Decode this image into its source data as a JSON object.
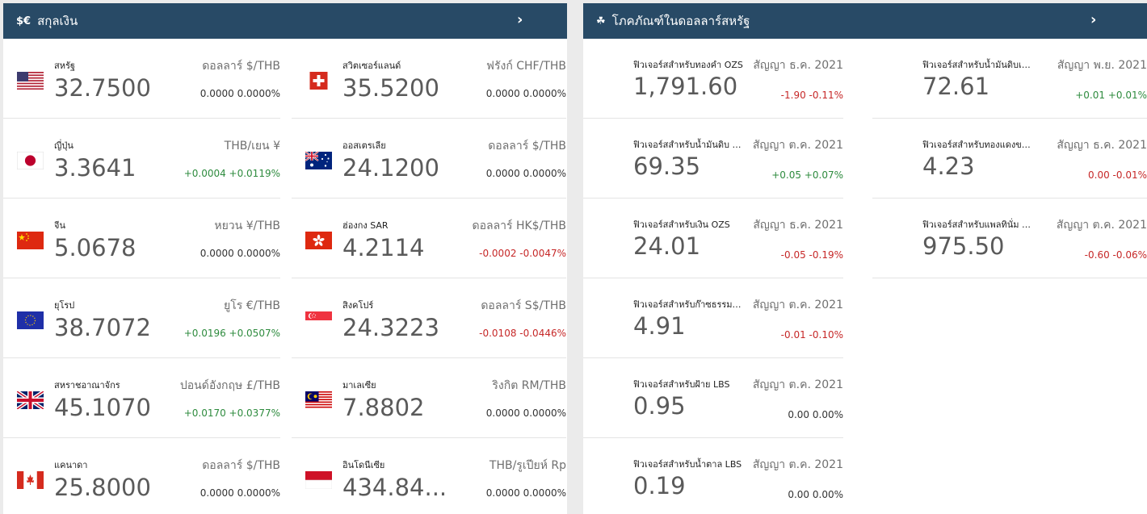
{
  "currency_panel": {
    "icon": "$€",
    "title": "สกุลเงิน",
    "arrow": "›",
    "columns": [
      [
        {
          "flag": "us-flag-icon",
          "name": "สหรัฐ",
          "pair": "ดอลลาร์ $/THB",
          "price": "32.7500",
          "change": "0.0000 0.0000%",
          "trend": "flat"
        },
        {
          "flag": "jp-flag-icon",
          "name": "ญี่ปุ่น",
          "pair": "THB/เยน ¥",
          "price": "3.3641",
          "change": "+0.0004 +0.0119%",
          "trend": "up"
        },
        {
          "flag": "cn-flag-icon",
          "name": "จีน",
          "pair": "หยวน ¥/THB",
          "price": "5.0678",
          "change": "0.0000 0.0000%",
          "trend": "flat"
        },
        {
          "flag": "eu-flag-icon",
          "name": "ยุโรป",
          "pair": "ยูโร €/THB",
          "price": "38.7072",
          "change": "+0.0196 +0.0507%",
          "trend": "up"
        },
        {
          "flag": "uk-flag-icon",
          "name": "สหราชอาณาจักร",
          "pair": "ปอนด์อังกฤษ £/THB",
          "price": "45.1070",
          "change": "+0.0170 +0.0377%",
          "trend": "up"
        },
        {
          "flag": "ca-flag-icon",
          "name": "แคนาดา",
          "pair": "ดอลลาร์ $/THB",
          "price": "25.8000",
          "change": "0.0000 0.0000%",
          "trend": "flat"
        }
      ],
      [
        {
          "flag": "ch-flag-icon",
          "name": "สวิตเซอร์แลนด์",
          "pair": "ฟรังก์ CHF/THB",
          "price": "35.5200",
          "change": "0.0000 0.0000%",
          "trend": "flat"
        },
        {
          "flag": "au-flag-icon",
          "name": "ออสเตรเลีย",
          "pair": "ดอลลาร์ $/THB",
          "price": "24.1200",
          "change": "0.0000 0.0000%",
          "trend": "flat"
        },
        {
          "flag": "hk-flag-icon",
          "name": "ฮ่องกง SAR",
          "pair": "ดอลลาร์ HK$/THB",
          "price": "4.2114",
          "change": "-0.0002 -0.0047%",
          "trend": "down"
        },
        {
          "flag": "sg-flag-icon",
          "name": "สิงคโปร์",
          "pair": "ดอลลาร์ S$/THB",
          "price": "24.3223",
          "change": "-0.0108 -0.0446%",
          "trend": "down"
        },
        {
          "flag": "my-flag-icon",
          "name": "มาเลเซีย",
          "pair": "ริงกิต RM/THB",
          "price": "7.8802",
          "change": "0.0000 0.0000%",
          "trend": "flat"
        },
        {
          "flag": "id-flag-icon",
          "name": "อินโดนีเซีย",
          "pair": "THB/รูเปียห์ Rp",
          "price": "434.84...",
          "change": "0.0000 0.0000%",
          "trend": "flat"
        }
      ]
    ]
  },
  "commodity_panel": {
    "icon": "☘",
    "title": "โภคภัณฑ์ในดอลลาร์สหรัฐ",
    "arrow": "›",
    "columns": [
      [
        {
          "name": "ฟิวเจอร์สสำหรับทองคำ OZS",
          "contract": "สัญญา ธ.ค. 2021",
          "price": "1,791.60",
          "change": "-1.90 -0.11%",
          "trend": "down"
        },
        {
          "name": "ฟิวเจอร์สสำหรับน้ำมันดิบ W...",
          "contract": "สัญญา ต.ค. 2021",
          "price": "69.35",
          "change": "+0.05 +0.07%",
          "trend": "up"
        },
        {
          "name": "ฟิวเจอร์สสำหรับเงิน OZS",
          "contract": "สัญญา ธ.ค. 2021",
          "price": "24.01",
          "change": "-0.05 -0.19%",
          "trend": "down"
        },
        {
          "name": "ฟิวเจอร์สสำหรับก๊าซธรรมชา...",
          "contract": "สัญญา ต.ค. 2021",
          "price": "4.91",
          "change": "-0.01 -0.10%",
          "trend": "down"
        },
        {
          "name": "ฟิวเจอร์สสำหรับฝ้าย LBS",
          "contract": "สัญญา ต.ค. 2021",
          "price": "0.95",
          "change": "0.00 0.00%",
          "trend": "flat"
        },
        {
          "name": "ฟิวเจอร์สสำหรับน้ำตาล LBS",
          "contract": "สัญญา ต.ค. 2021",
          "price": "0.19",
          "change": "0.00 0.00%",
          "trend": "flat"
        }
      ],
      [
        {
          "name": "ฟิวเจอร์สสำหรับน้ำมันดิบเบ...",
          "contract": "สัญญา พ.ย. 2021",
          "price": "72.61",
          "change": "+0.01 +0.01%",
          "trend": "up"
        },
        {
          "name": "ฟิวเจอร์สสำหรับทองแดงของ...",
          "contract": "สัญญา ธ.ค. 2021",
          "price": "4.23",
          "change": "0.00 -0.01%",
          "trend": "down"
        },
        {
          "name": "ฟิวเจอร์สสำหรับแพลทินั่ม O...",
          "contract": "สัญญา ต.ค. 2021",
          "price": "975.50",
          "change": "-0.60 -0.06%",
          "trend": "down"
        }
      ]
    ]
  }
}
